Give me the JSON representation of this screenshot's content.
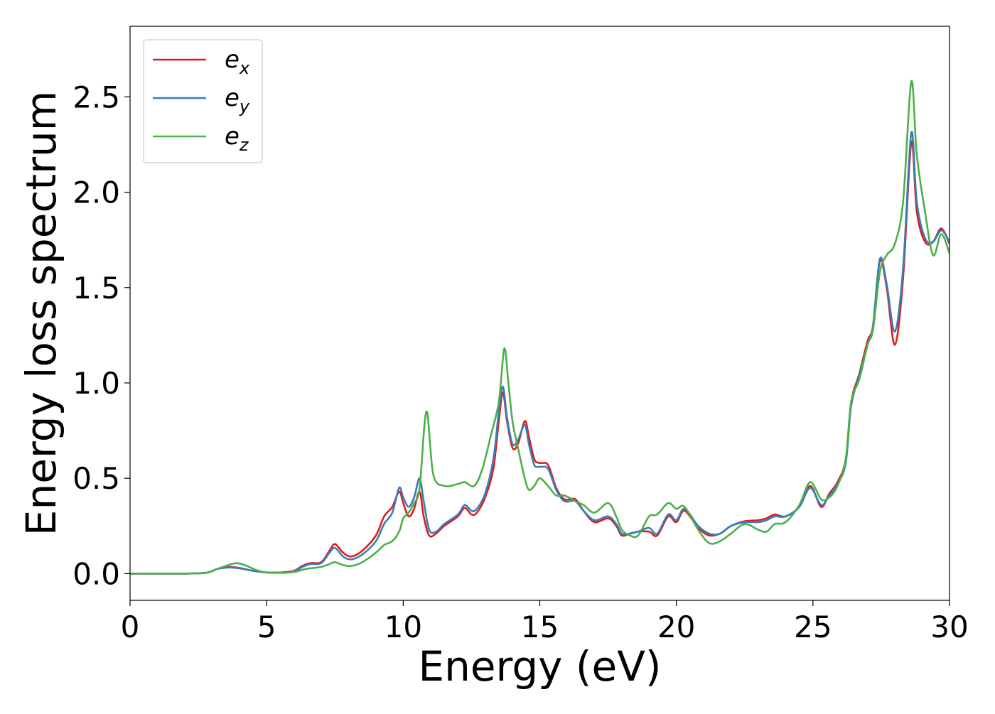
{
  "chart_data": {
    "type": "line",
    "title": "",
    "xlabel": "Energy (eV)",
    "ylabel": "Energy loss spectrum",
    "xlim": [
      0,
      30
    ],
    "ylim": [
      -0.14,
      2.87
    ],
    "xticks": [
      0,
      5,
      10,
      15,
      20,
      25,
      30
    ],
    "xtick_labels": [
      "0",
      "5",
      "10",
      "15",
      "20",
      "25",
      "30"
    ],
    "yticks": [
      0.0,
      0.5,
      1.0,
      1.5,
      2.0,
      2.5
    ],
    "ytick_labels": [
      "0.0",
      "0.5",
      "1.0",
      "1.5",
      "2.0",
      "2.5"
    ],
    "grid": false,
    "legend_position": "top-left",
    "series": [
      {
        "name": "e_x",
        "base": "e",
        "sub": "x",
        "color": "#e41a1c",
        "points": [
          [
            0,
            0.0
          ],
          [
            1,
            0.0
          ],
          [
            2,
            0.0
          ],
          [
            2.8,
            0.005
          ],
          [
            3.2,
            0.025
          ],
          [
            3.6,
            0.035
          ],
          [
            4.0,
            0.03
          ],
          [
            4.5,
            0.015
          ],
          [
            5,
            0.006
          ],
          [
            5.5,
            0.006
          ],
          [
            6,
            0.015
          ],
          [
            6.3,
            0.04
          ],
          [
            6.6,
            0.055
          ],
          [
            7.0,
            0.06
          ],
          [
            7.3,
            0.12
          ],
          [
            7.5,
            0.155
          ],
          [
            7.8,
            0.11
          ],
          [
            8.1,
            0.09
          ],
          [
            8.5,
            0.12
          ],
          [
            9.0,
            0.2
          ],
          [
            9.3,
            0.3
          ],
          [
            9.6,
            0.35
          ],
          [
            9.85,
            0.43
          ],
          [
            10.0,
            0.37
          ],
          [
            10.2,
            0.3
          ],
          [
            10.4,
            0.34
          ],
          [
            10.6,
            0.43
          ],
          [
            10.75,
            0.3
          ],
          [
            10.95,
            0.2
          ],
          [
            11.2,
            0.21
          ],
          [
            11.5,
            0.25
          ],
          [
            12.0,
            0.3
          ],
          [
            12.25,
            0.345
          ],
          [
            12.5,
            0.31
          ],
          [
            12.7,
            0.32
          ],
          [
            13.0,
            0.4
          ],
          [
            13.3,
            0.55
          ],
          [
            13.5,
            0.8
          ],
          [
            13.65,
            0.95
          ],
          [
            13.8,
            0.8
          ],
          [
            14.0,
            0.66
          ],
          [
            14.2,
            0.68
          ],
          [
            14.45,
            0.8
          ],
          [
            14.6,
            0.72
          ],
          [
            14.8,
            0.6
          ],
          [
            15.0,
            0.58
          ],
          [
            15.3,
            0.57
          ],
          [
            15.6,
            0.45
          ],
          [
            15.9,
            0.39
          ],
          [
            16.3,
            0.39
          ],
          [
            16.6,
            0.33
          ],
          [
            17.0,
            0.27
          ],
          [
            17.5,
            0.29
          ],
          [
            17.8,
            0.25
          ],
          [
            18.0,
            0.2
          ],
          [
            18.3,
            0.21
          ],
          [
            18.6,
            0.22
          ],
          [
            19.0,
            0.22
          ],
          [
            19.3,
            0.2
          ],
          [
            19.7,
            0.3
          ],
          [
            20.0,
            0.27
          ],
          [
            20.3,
            0.33
          ],
          [
            20.8,
            0.24
          ],
          [
            21.2,
            0.2
          ],
          [
            21.6,
            0.21
          ],
          [
            22.0,
            0.25
          ],
          [
            22.5,
            0.275
          ],
          [
            23.0,
            0.28
          ],
          [
            23.3,
            0.29
          ],
          [
            23.6,
            0.31
          ],
          [
            24.0,
            0.3
          ],
          [
            24.5,
            0.35
          ],
          [
            24.9,
            0.46
          ],
          [
            25.3,
            0.35
          ],
          [
            25.6,
            0.42
          ],
          [
            25.9,
            0.48
          ],
          [
            26.2,
            0.6
          ],
          [
            26.4,
            0.9
          ],
          [
            26.7,
            1.05
          ],
          [
            27.0,
            1.22
          ],
          [
            27.2,
            1.3
          ],
          [
            27.45,
            1.64
          ],
          [
            27.7,
            1.5
          ],
          [
            28.0,
            1.2
          ],
          [
            28.3,
            1.55
          ],
          [
            28.6,
            2.26
          ],
          [
            28.8,
            1.9
          ],
          [
            29.1,
            1.74
          ],
          [
            29.4,
            1.74
          ],
          [
            29.7,
            1.81
          ],
          [
            30,
            1.73
          ]
        ]
      },
      {
        "name": "e_y",
        "base": "e",
        "sub": "y",
        "color": "#377eb8",
        "points": [
          [
            0,
            0.0
          ],
          [
            1,
            0.0
          ],
          [
            2,
            0.0
          ],
          [
            2.8,
            0.005
          ],
          [
            3.2,
            0.025
          ],
          [
            3.6,
            0.032
          ],
          [
            4.0,
            0.028
          ],
          [
            4.5,
            0.015
          ],
          [
            5,
            0.006
          ],
          [
            5.5,
            0.006
          ],
          [
            6,
            0.012
          ],
          [
            6.3,
            0.035
          ],
          [
            6.6,
            0.05
          ],
          [
            7.0,
            0.055
          ],
          [
            7.3,
            0.11
          ],
          [
            7.5,
            0.135
          ],
          [
            7.8,
            0.09
          ],
          [
            8.1,
            0.075
          ],
          [
            8.5,
            0.1
          ],
          [
            9.0,
            0.17
          ],
          [
            9.3,
            0.26
          ],
          [
            9.6,
            0.32
          ],
          [
            9.85,
            0.45
          ],
          [
            10.0,
            0.4
          ],
          [
            10.2,
            0.35
          ],
          [
            10.4,
            0.4
          ],
          [
            10.6,
            0.5
          ],
          [
            10.75,
            0.38
          ],
          [
            10.95,
            0.23
          ],
          [
            11.2,
            0.22
          ],
          [
            11.5,
            0.26
          ],
          [
            12.0,
            0.31
          ],
          [
            12.25,
            0.36
          ],
          [
            12.5,
            0.33
          ],
          [
            12.7,
            0.34
          ],
          [
            13.0,
            0.42
          ],
          [
            13.3,
            0.6
          ],
          [
            13.5,
            0.85
          ],
          [
            13.65,
            0.98
          ],
          [
            13.8,
            0.82
          ],
          [
            14.0,
            0.68
          ],
          [
            14.2,
            0.7
          ],
          [
            14.45,
            0.78
          ],
          [
            14.6,
            0.68
          ],
          [
            14.8,
            0.57
          ],
          [
            15.0,
            0.56
          ],
          [
            15.3,
            0.55
          ],
          [
            15.6,
            0.44
          ],
          [
            15.9,
            0.38
          ],
          [
            16.3,
            0.38
          ],
          [
            16.6,
            0.33
          ],
          [
            17.0,
            0.28
          ],
          [
            17.5,
            0.3
          ],
          [
            17.8,
            0.26
          ],
          [
            18.0,
            0.21
          ],
          [
            18.3,
            0.21
          ],
          [
            18.6,
            0.22
          ],
          [
            19.0,
            0.24
          ],
          [
            19.3,
            0.21
          ],
          [
            19.7,
            0.31
          ],
          [
            20.0,
            0.28
          ],
          [
            20.3,
            0.34
          ],
          [
            20.8,
            0.25
          ],
          [
            21.2,
            0.21
          ],
          [
            21.6,
            0.21
          ],
          [
            22.0,
            0.25
          ],
          [
            22.5,
            0.27
          ],
          [
            23.0,
            0.27
          ],
          [
            23.3,
            0.28
          ],
          [
            23.6,
            0.3
          ],
          [
            24.0,
            0.3
          ],
          [
            24.5,
            0.35
          ],
          [
            24.9,
            0.45
          ],
          [
            25.3,
            0.36
          ],
          [
            25.6,
            0.41
          ],
          [
            25.9,
            0.47
          ],
          [
            26.2,
            0.58
          ],
          [
            26.4,
            0.88
          ],
          [
            26.7,
            1.04
          ],
          [
            27.0,
            1.2
          ],
          [
            27.2,
            1.3
          ],
          [
            27.45,
            1.65
          ],
          [
            27.7,
            1.52
          ],
          [
            28.0,
            1.27
          ],
          [
            28.3,
            1.6
          ],
          [
            28.6,
            2.31
          ],
          [
            28.8,
            1.95
          ],
          [
            29.1,
            1.76
          ],
          [
            29.4,
            1.74
          ],
          [
            29.7,
            1.8
          ],
          [
            30,
            1.74
          ]
        ]
      },
      {
        "name": "e_z",
        "base": "e",
        "sub": "z",
        "color": "#4daf4a",
        "points": [
          [
            0,
            0.0
          ],
          [
            1,
            0.0
          ],
          [
            2,
            0.0
          ],
          [
            2.8,
            0.005
          ],
          [
            3.2,
            0.025
          ],
          [
            3.6,
            0.045
          ],
          [
            3.9,
            0.055
          ],
          [
            4.2,
            0.045
          ],
          [
            4.6,
            0.02
          ],
          [
            5,
            0.006
          ],
          [
            5.5,
            0.004
          ],
          [
            6,
            0.008
          ],
          [
            6.3,
            0.02
          ],
          [
            6.6,
            0.028
          ],
          [
            7.0,
            0.035
          ],
          [
            7.3,
            0.05
          ],
          [
            7.5,
            0.06
          ],
          [
            7.8,
            0.045
          ],
          [
            8.1,
            0.04
          ],
          [
            8.5,
            0.06
          ],
          [
            9.0,
            0.11
          ],
          [
            9.3,
            0.15
          ],
          [
            9.6,
            0.17
          ],
          [
            9.85,
            0.22
          ],
          [
            10.0,
            0.29
          ],
          [
            10.2,
            0.32
          ],
          [
            10.4,
            0.37
          ],
          [
            10.6,
            0.45
          ],
          [
            10.85,
            0.85
          ],
          [
            11.1,
            0.52
          ],
          [
            11.5,
            0.46
          ],
          [
            12.0,
            0.47
          ],
          [
            12.25,
            0.48
          ],
          [
            12.6,
            0.46
          ],
          [
            12.9,
            0.55
          ],
          [
            13.2,
            0.72
          ],
          [
            13.5,
            0.9
          ],
          [
            13.7,
            1.18
          ],
          [
            13.85,
            1.0
          ],
          [
            14.0,
            0.8
          ],
          [
            14.2,
            0.66
          ],
          [
            14.45,
            0.5
          ],
          [
            14.6,
            0.44
          ],
          [
            14.8,
            0.46
          ],
          [
            15.0,
            0.5
          ],
          [
            15.3,
            0.46
          ],
          [
            15.6,
            0.41
          ],
          [
            15.9,
            0.41
          ],
          [
            16.3,
            0.38
          ],
          [
            16.6,
            0.36
          ],
          [
            17.0,
            0.32
          ],
          [
            17.5,
            0.37
          ],
          [
            17.8,
            0.3
          ],
          [
            18.0,
            0.23
          ],
          [
            18.3,
            0.2
          ],
          [
            18.6,
            0.2
          ],
          [
            19.0,
            0.3
          ],
          [
            19.3,
            0.31
          ],
          [
            19.7,
            0.37
          ],
          [
            20.0,
            0.34
          ],
          [
            20.3,
            0.35
          ],
          [
            20.8,
            0.23
          ],
          [
            21.2,
            0.16
          ],
          [
            21.6,
            0.17
          ],
          [
            22.0,
            0.21
          ],
          [
            22.5,
            0.26
          ],
          [
            23.0,
            0.23
          ],
          [
            23.3,
            0.22
          ],
          [
            23.6,
            0.26
          ],
          [
            24.0,
            0.27
          ],
          [
            24.5,
            0.36
          ],
          [
            24.9,
            0.48
          ],
          [
            25.3,
            0.39
          ],
          [
            25.6,
            0.4
          ],
          [
            25.9,
            0.46
          ],
          [
            26.2,
            0.6
          ],
          [
            26.4,
            0.9
          ],
          [
            26.7,
            1.02
          ],
          [
            27.0,
            1.2
          ],
          [
            27.2,
            1.28
          ],
          [
            27.45,
            1.58
          ],
          [
            27.7,
            1.67
          ],
          [
            28.0,
            1.73
          ],
          [
            28.3,
            1.95
          ],
          [
            28.6,
            2.58
          ],
          [
            28.8,
            2.2
          ],
          [
            29.1,
            1.9
          ],
          [
            29.4,
            1.67
          ],
          [
            29.7,
            1.78
          ],
          [
            30,
            1.68
          ]
        ]
      }
    ]
  }
}
